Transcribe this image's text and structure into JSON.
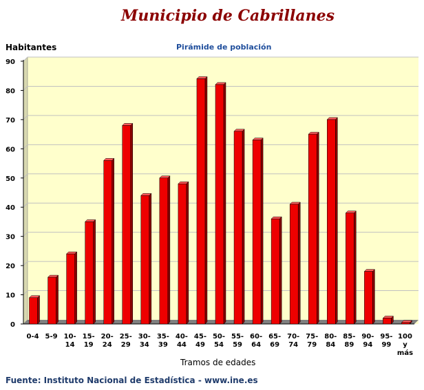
{
  "header": {
    "title": "Municipio de Cabrillanes",
    "ylabel": "Habitantes",
    "subtitle": "Pirámide de población"
  },
  "footer": {
    "xlabel": "Tramos de edades",
    "source": "Fuente: Instituto Nacional de Estadística - www.ine.es"
  },
  "chart_data": {
    "type": "bar",
    "title": "Municipio de Cabrillanes",
    "subtitle": "Pirámide de población",
    "xlabel": "Tramos de edades",
    "ylabel": "Habitantes",
    "ylim": [
      0,
      90
    ],
    "yticks": [
      0,
      10,
      20,
      30,
      40,
      50,
      60,
      70,
      80,
      90
    ],
    "grid": true,
    "categories": [
      [
        "0-4"
      ],
      [
        "5-9"
      ],
      [
        "10-",
        "14"
      ],
      [
        "15-",
        "19"
      ],
      [
        "20-",
        "24"
      ],
      [
        "25-",
        "29"
      ],
      [
        "30-",
        "34"
      ],
      [
        "35-",
        "39"
      ],
      [
        "40-",
        "44"
      ],
      [
        "45-",
        "49"
      ],
      [
        "50-",
        "54"
      ],
      [
        "55-",
        "59"
      ],
      [
        "60-",
        "64"
      ],
      [
        "65-",
        "69"
      ],
      [
        "70-",
        "74"
      ],
      [
        "75-",
        "79"
      ],
      [
        "80-",
        "84"
      ],
      [
        "85-",
        "89"
      ],
      [
        "90-",
        "94"
      ],
      [
        "95-",
        "99"
      ],
      [
        "100",
        "y",
        "más"
      ]
    ],
    "values": [
      9,
      16,
      24,
      35,
      56,
      68,
      44,
      50,
      48,
      84,
      82,
      66,
      63,
      36,
      41,
      65,
      70,
      38,
      18,
      2,
      0.5
    ],
    "colors": {
      "bar_front": "#ee0000",
      "bar_side": "#8b0000",
      "bar_top": "#ff5a5a",
      "plot_bg": "#ffffcc",
      "floor": "#808080",
      "grid": "#c0c0c0"
    }
  }
}
